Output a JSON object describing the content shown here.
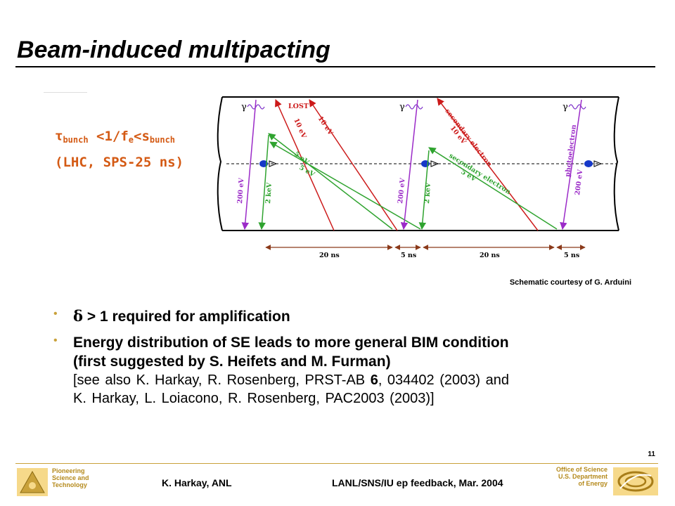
{
  "slide": {
    "title": "Beam-induced multipacting",
    "page_number": "11"
  },
  "condition": {
    "tau": "τ",
    "bunch1": "bunch",
    "lt1": " <1/f",
    "e": "e",
    "lt2": "<s",
    "bunch2": "bunch",
    "line2": "(LHC, SPS-25 ns)"
  },
  "diagram": {
    "photon_symbol": "γ",
    "lost": "LOST",
    "label_10ev": "10 eV",
    "label_5ev": "5 eV",
    "label_200ev": "200 eV",
    "label_2kev": "2 keV",
    "secondary_electron": "secondary electron",
    "photoelectron": "photoelectron",
    "t20ns": "20 ns",
    "t5ns": "5 ns"
  },
  "credit": "Schematic courtesy of G. Arduini",
  "bullets": {
    "b1_symbol": "δ",
    "b1_text": " > 1 required for amplification",
    "b2_line1": "Energy distribution of SE leads to more general BIM condition",
    "b2_line2": "(first suggested by S. Heifets and M. Furman)",
    "b2_ref_a": "[see also K. Harkay, R. Rosenberg, PRST-AB ",
    "b2_ref_vol": "6",
    "b2_ref_b": ", 034402 (2003) and",
    "b2_ref_line2": "K. Harkay, L. Loiacono, R. Rosenberg, PAC2003 (2003)]"
  },
  "footer": {
    "anl_line1": "Pioneering",
    "anl_line2": "Science and",
    "anl_line3": "Technology",
    "author": "K. Harkay, ANL",
    "event": "LANL/SNS/IU ep feedback, Mar. 2004",
    "doe_line1": "Office of Science",
    "doe_line2": "U.S. Department",
    "doe_line3": "of Energy"
  },
  "colors": {
    "title": "#000000",
    "condition": "#d45a14",
    "red_arrow": "#cc1a1a",
    "green_arrow": "#2fa32f",
    "violet_arrow": "#9b2bc8",
    "bunch": "#1638c8",
    "timeline": "#8b3a1a",
    "gold": "#c9a13a"
  }
}
